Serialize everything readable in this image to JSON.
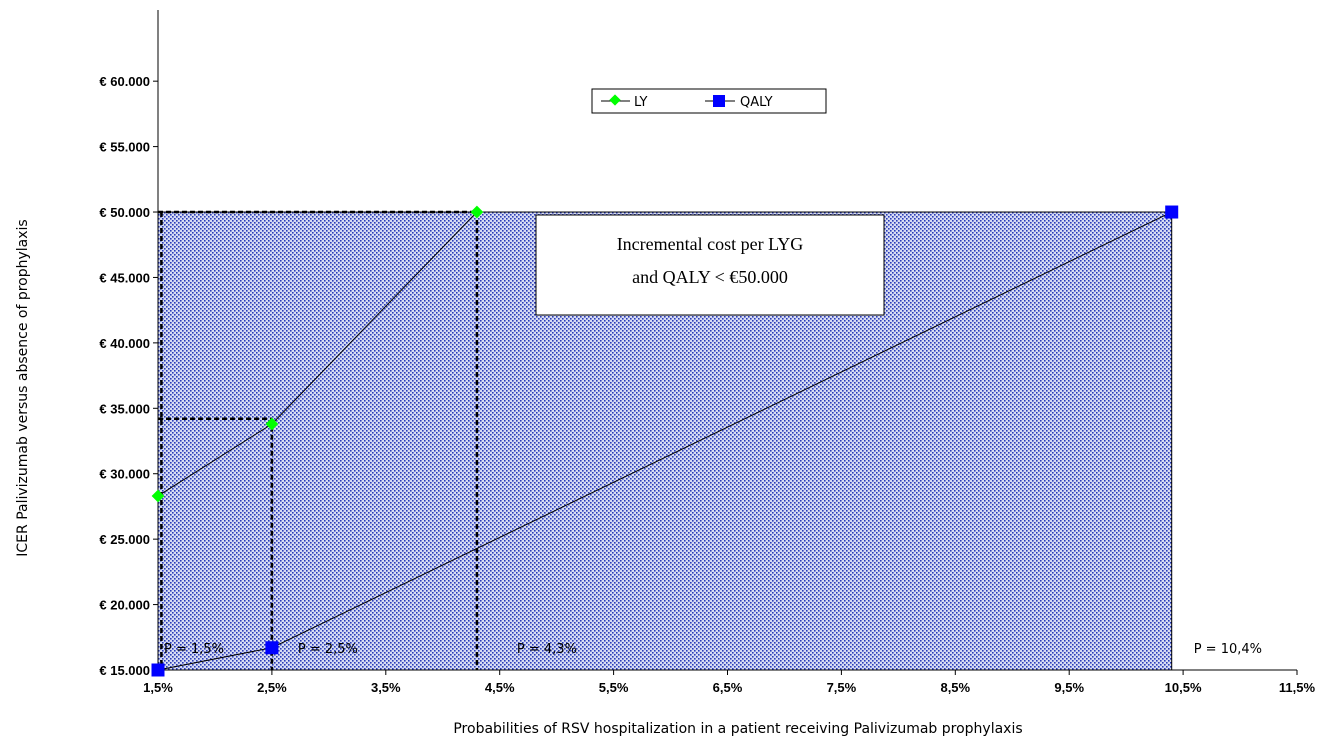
{
  "chart_data": {
    "type": "line",
    "title": "",
    "xlabel": "Probabilities of  RSV hospitalization in a patient receiving Palivizumab prophylaxis",
    "ylabel": "ICER Palivizumab versus absence of prophylaxis",
    "xlim": [
      1.5,
      11.5
    ],
    "ylim": [
      15000,
      62000
    ],
    "x_ticks": [
      1.5,
      2.5,
      3.5,
      4.5,
      5.5,
      6.5,
      7.5,
      8.5,
      9.5,
      10.5,
      11.5
    ],
    "x_tick_labels": [
      "1,5%",
      "2,5%",
      "3,5%",
      "4,5%",
      "5,5%",
      "6,5%",
      "7,5%",
      "8,5%",
      "9,5%",
      "10,5%",
      "11,5%"
    ],
    "y_ticks": [
      15000,
      20000,
      25000,
      30000,
      35000,
      40000,
      45000,
      50000,
      55000,
      60000
    ],
    "y_tick_labels": [
      "€ 15.000",
      "€ 20.000",
      "€ 25.000",
      "€ 30.000",
      "€ 35.000",
      "€ 40.000",
      "€ 45.000",
      "€ 50.000",
      "€ 55.000",
      "€ 60.000"
    ],
    "grid": false,
    "legend_position": "top-center",
    "series": [
      {
        "name": "LY",
        "color": "#00ff00",
        "marker": "diamond",
        "points": [
          [
            1.5,
            28300
          ],
          [
            2.5,
            33800
          ],
          [
            4.3,
            50000
          ]
        ]
      },
      {
        "name": "QALY",
        "color": "#0000ff",
        "marker": "square",
        "points": [
          [
            1.5,
            15000
          ],
          [
            2.5,
            16700
          ],
          [
            10.4,
            50000
          ]
        ]
      }
    ],
    "shaded_region": {
      "x": [
        1.5,
        10.4
      ],
      "y": [
        15000,
        50000
      ],
      "color": "#0000cc"
    },
    "reference_lines": [
      {
        "x": 1.53,
        "y_top": 50000
      },
      {
        "x": 2.5,
        "y_top": 34200
      },
      {
        "x": 4.3,
        "y_top": 50000
      },
      {
        "y": 50000,
        "x_right": 4.3
      },
      {
        "y": 34200,
        "x_right": 2.5
      }
    ],
    "annotation_box": {
      "lines": [
        "Incremental cost per LYG",
        "and QALY < €50.000"
      ]
    },
    "point_labels": [
      {
        "text": "P = 1,5%",
        "x": 1.5
      },
      {
        "text": "P = 2,5%",
        "x": 2.5
      },
      {
        "text": "P = 4,3%",
        "x": 4.3
      },
      {
        "text": "P = 10,4%",
        "x": 10.4
      }
    ]
  }
}
